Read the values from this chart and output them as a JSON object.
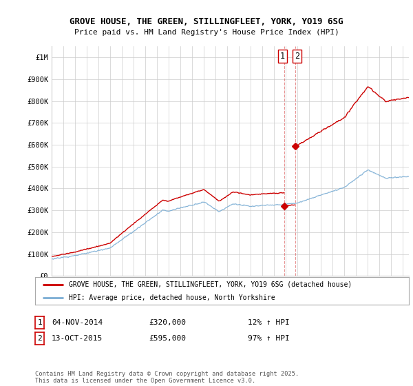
{
  "title_line1": "GROVE HOUSE, THE GREEN, STILLINGFLEET, YORK, YO19 6SG",
  "title_line2": "Price paid vs. HM Land Registry's House Price Index (HPI)",
  "ylim": [
    0,
    1050000
  ],
  "yticks": [
    0,
    100000,
    200000,
    300000,
    400000,
    500000,
    600000,
    700000,
    800000,
    900000,
    1000000
  ],
  "ytick_labels": [
    "£0",
    "£100K",
    "£200K",
    "£300K",
    "£400K",
    "£500K",
    "£600K",
    "£700K",
    "£800K",
    "£900K",
    "£1M"
  ],
  "xlim_start": 1995.0,
  "xlim_end": 2025.5,
  "purchase1_date": 2014.84,
  "purchase1_price": 320000,
  "purchase2_date": 2015.79,
  "purchase2_price": 595000,
  "legend_line1": "GROVE HOUSE, THE GREEN, STILLINGFLEET, YORK, YO19 6SG (detached house)",
  "legend_line2": "HPI: Average price, detached house, North Yorkshire",
  "note1_num": "1",
  "note1_date": "04-NOV-2014",
  "note1_price": "£320,000",
  "note1_hpi": "12% ↑ HPI",
  "note2_num": "2",
  "note2_date": "13-OCT-2015",
  "note2_price": "£595,000",
  "note2_hpi": "97% ↑ HPI",
  "footer": "Contains HM Land Registry data © Crown copyright and database right 2025.\nThis data is licensed under the Open Government Licence v3.0.",
  "line1_color": "#cc0000",
  "line2_color": "#7aadd4",
  "vline_color": "#cc0000",
  "background_color": "#ffffff",
  "grid_color": "#cccccc"
}
